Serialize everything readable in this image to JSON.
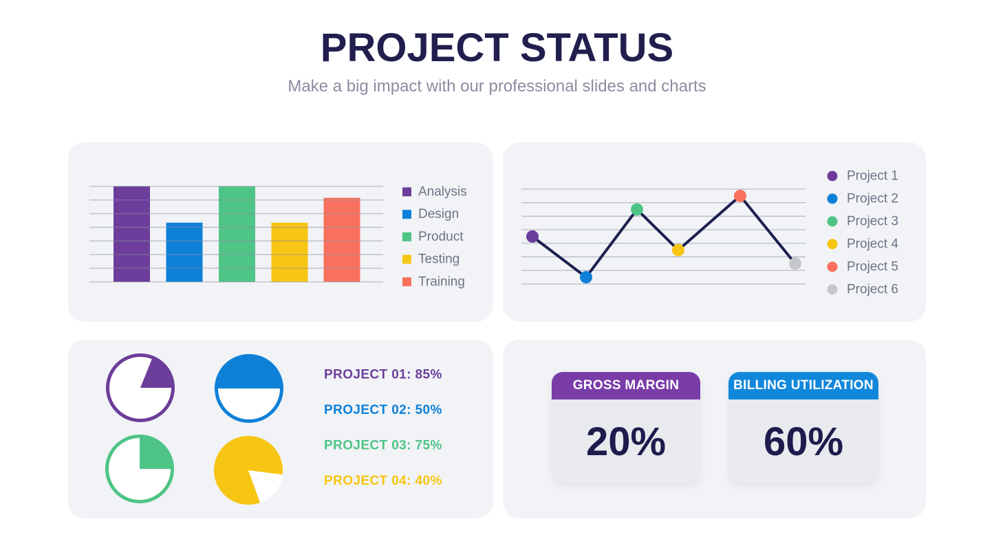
{
  "header": {
    "title": "PROJECT STATUS",
    "subtitle": "Make a big impact with our professional slides and charts"
  },
  "colors": {
    "title_text": "#211F4E",
    "subtitle_text": "#8A8CA0",
    "panel_bg": "#F1F3F6",
    "grid_line": "#8A8FA0",
    "legend_text": "#6F7285",
    "line_stroke": "#1B2150",
    "card_body_bg": "#E8EAEE",
    "stat_value_text": "#1E1C4D"
  },
  "chart_data": [
    {
      "id": "bar_chart",
      "type": "bar",
      "title": "",
      "xlabel": "",
      "ylabel": "",
      "categories": [
        "Analysis",
        "Design",
        "Product",
        "Testing",
        "Training"
      ],
      "values": [
        100,
        62,
        100,
        62,
        88
      ],
      "colors": [
        "#6C3D9B",
        "#0E80D8",
        "#4FC487",
        "#F7C513",
        "#F9715E"
      ],
      "ylim": [
        0,
        100
      ],
      "grid": true,
      "gridline_count": 8,
      "legend_position": "right"
    },
    {
      "id": "line_chart",
      "type": "line",
      "title": "",
      "xlabel": "",
      "ylabel": "",
      "categories": [
        "Project 1",
        "Project 2",
        "Project 3",
        "Project 4",
        "Project 5",
        "Project 6"
      ],
      "values": [
        3.5,
        0.5,
        5.5,
        2.5,
        6.5,
        1.5
      ],
      "point_colors": [
        "#6C3D9B",
        "#0E80D8",
        "#4FC487",
        "#F7C513",
        "#F9715E",
        "#C5C7CD"
      ],
      "line_color": "#1B2150",
      "ylim": [
        0,
        7
      ],
      "grid": true,
      "gridline_count": 8,
      "legend_position": "right"
    },
    {
      "id": "pie_charts",
      "type": "pie",
      "pies": [
        {
          "label": "PROJECT 01",
          "value": 85,
          "display": "PROJECT 01: 85%",
          "color": "#6C3D9B",
          "style": "outline_wedge",
          "wedge_from_deg": 22,
          "wedge_to_deg": 90
        },
        {
          "label": "PROJECT 02",
          "value": 50,
          "display": "PROJECT 02: 50%",
          "color": "#0E80D8",
          "style": "outline_wedge",
          "wedge_from_deg": -90,
          "wedge_to_deg": 90
        },
        {
          "label": "PROJECT 03",
          "value": 75,
          "display": "PROJECT 03: 75%",
          "color": "#4FC487",
          "style": "outline_wedge",
          "wedge_from_deg": 0,
          "wedge_to_deg": 90
        },
        {
          "label": "PROJECT 04",
          "value": 40,
          "display": "PROJECT 04: 40%",
          "color": "#F7C513",
          "style": "filled_white_wedge",
          "wedge_from_deg": 97,
          "wedge_to_deg": 160
        }
      ]
    },
    {
      "id": "stat_cards",
      "type": "table",
      "cards": [
        {
          "label": "GROSS MARGIN",
          "value": "20%",
          "header_color": "#7A3DA8"
        },
        {
          "label": "BILLING UTILIZATION",
          "value": "60%",
          "header_color": "#1187DC"
        }
      ]
    }
  ]
}
